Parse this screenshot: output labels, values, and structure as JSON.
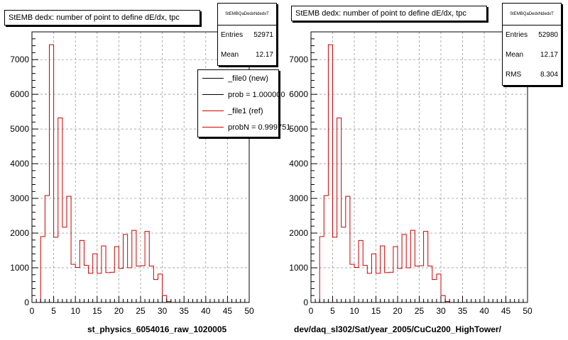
{
  "chart_data": [
    {
      "type": "bar",
      "histogram": true,
      "title": "StEMB dedx: number of point to define dE/dx, tpc",
      "xlabel": "st_physics_6054016_raw_1020005",
      "ylabel": "",
      "xlim": [
        0,
        50
      ],
      "ylim": [
        0,
        7800
      ],
      "x_ticks": [
        "0",
        "5",
        "10",
        "15",
        "20",
        "25",
        "30",
        "35",
        "40",
        "45",
        "50"
      ],
      "y_ticks": [
        "0",
        "1000",
        "2000",
        "3000",
        "4000",
        "5000",
        "6000",
        "7000"
      ],
      "grid": true,
      "stats": {
        "name": "StEMBQaDedxNdedxT",
        "rows": [
          {
            "label": "Entries",
            "value": "52971"
          },
          {
            "label": "Mean",
            "value": "12.17"
          }
        ]
      },
      "legend": {
        "position": "top-right",
        "entries": [
          {
            "label": "_file0 (new)",
            "color": "#000000"
          },
          {
            "label": "prob = 1.000000",
            "color": "#000000"
          },
          {
            "label": "_file1 (ref)",
            "color": "#cc0000"
          },
          {
            "label": "probN = 0.999751",
            "color": "#cc0000"
          }
        ]
      },
      "series": [
        {
          "color": "#cc0000",
          "bin_edges_start": 0,
          "bin_width": 1,
          "values": [
            0,
            0,
            1900,
            3080,
            7430,
            1880,
            5320,
            2170,
            3060,
            1100,
            1010,
            1790,
            1070,
            840,
            1400,
            840,
            1630,
            860,
            870,
            1610,
            980,
            1960,
            1000,
            2080,
            1050,
            1060,
            2050,
            1050,
            660,
            820,
            200,
            30,
            0,
            0,
            0,
            0,
            0,
            0,
            0,
            0,
            0,
            0,
            0,
            0,
            0,
            0,
            0,
            0,
            0,
            0
          ]
        }
      ]
    },
    {
      "type": "bar",
      "histogram": true,
      "title": "StEMB dedx: number of point to define dE/dx, tpc",
      "xlabel": "dev/daq_sl302/Sat/year_2005/CuCu200_HighTower/",
      "ylabel": "",
      "xlim": [
        0,
        50
      ],
      "ylim": [
        0,
        7800
      ],
      "x_ticks": [
        "0",
        "5",
        "10",
        "15",
        "20",
        "25",
        "30",
        "35",
        "40",
        "45",
        "50"
      ],
      "y_ticks": [
        "0",
        "1000",
        "2000",
        "3000",
        "4000",
        "5000",
        "6000",
        "7000"
      ],
      "grid": true,
      "stats": {
        "name": "StEMBQaDedxNdedxT",
        "rows": [
          {
            "label": "Entries",
            "value": "52980"
          },
          {
            "label": "Mean",
            "value": "12.17"
          },
          {
            "label": "RMS",
            "value": "8.304"
          }
        ]
      },
      "series": [
        {
          "color": "#cc0000",
          "bin_edges_start": 0,
          "bin_width": 1,
          "values": [
            0,
            0,
            1900,
            3080,
            7430,
            1880,
            5320,
            2170,
            3060,
            1100,
            1010,
            1790,
            1070,
            840,
            1400,
            840,
            1630,
            860,
            870,
            1610,
            980,
            1960,
            1000,
            2080,
            1050,
            1060,
            2050,
            1050,
            660,
            820,
            200,
            30,
            0,
            0,
            0,
            0,
            0,
            0,
            0,
            0,
            0,
            0,
            0,
            0,
            0,
            0,
            0,
            0,
            0,
            0
          ]
        }
      ]
    }
  ]
}
